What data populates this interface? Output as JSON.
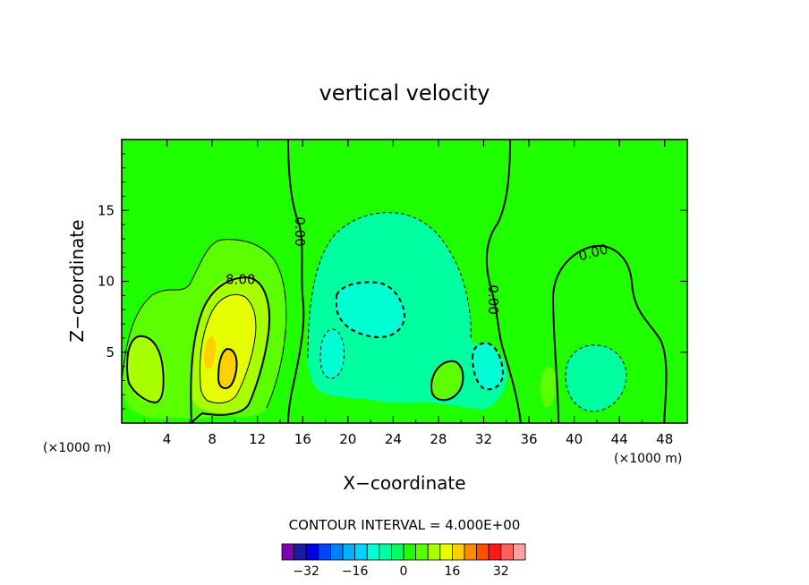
{
  "chart_data": {
    "type": "contour",
    "title": "vertical velocity",
    "xlabel": "X−coordinate",
    "ylabel": "Z−coordinate",
    "x_unit": "(×1000 m)",
    "z_unit": "(×1000 m)",
    "xlim": [
      0,
      50
    ],
    "ylim": [
      0,
      20
    ],
    "x_ticks": [
      4,
      8,
      12,
      16,
      20,
      24,
      28,
      32,
      36,
      40,
      44,
      48
    ],
    "x_tick_labels": [
      "4",
      "8",
      "12",
      "16",
      "20",
      "24",
      "28",
      "32",
      "36",
      "40",
      "44",
      "48"
    ],
    "y_ticks": [
      5,
      10,
      15
    ],
    "y_tick_labels": [
      "5",
      "10",
      "15"
    ],
    "contour_interval_text": "CONTOUR INTERVAL = 4.000E+00",
    "contour_labels": [
      {
        "text": "8.00",
        "x": 10.5,
        "z": 10.1,
        "rotate": 0
      },
      {
        "text": "0.00",
        "x": 15.7,
        "z": 13.5,
        "rotate": 90
      },
      {
        "text": "0.00",
        "x": 32.8,
        "z": 8.7,
        "rotate": 90
      },
      {
        "text": "0.00",
        "x": 41.7,
        "z": 12.0,
        "rotate": -15
      }
    ],
    "colorbar": {
      "levels": [
        -36,
        -32,
        -28,
        -24,
        -20,
        -16,
        -12,
        -8,
        -4,
        0,
        4,
        8,
        12,
        16,
        20,
        24,
        28,
        32,
        36
      ],
      "colors": [
        "#7f00b2",
        "#1a1aa6",
        "#0000e6",
        "#0044ff",
        "#0080ff",
        "#00b2ff",
        "#00d4ff",
        "#00ffd5",
        "#00ffa0",
        "#00ff60",
        "#20ff00",
        "#5cff00",
        "#a8ff00",
        "#e6ff00",
        "#ffd000",
        "#ff8c00",
        "#ff5000",
        "#ff1a1a",
        "#ff6060",
        "#ffa0a0"
      ],
      "tick_values": [
        -32,
        -16,
        0,
        16,
        32
      ],
      "tick_labels": [
        "−32",
        "−16",
        "0",
        "16",
        "32"
      ]
    }
  }
}
